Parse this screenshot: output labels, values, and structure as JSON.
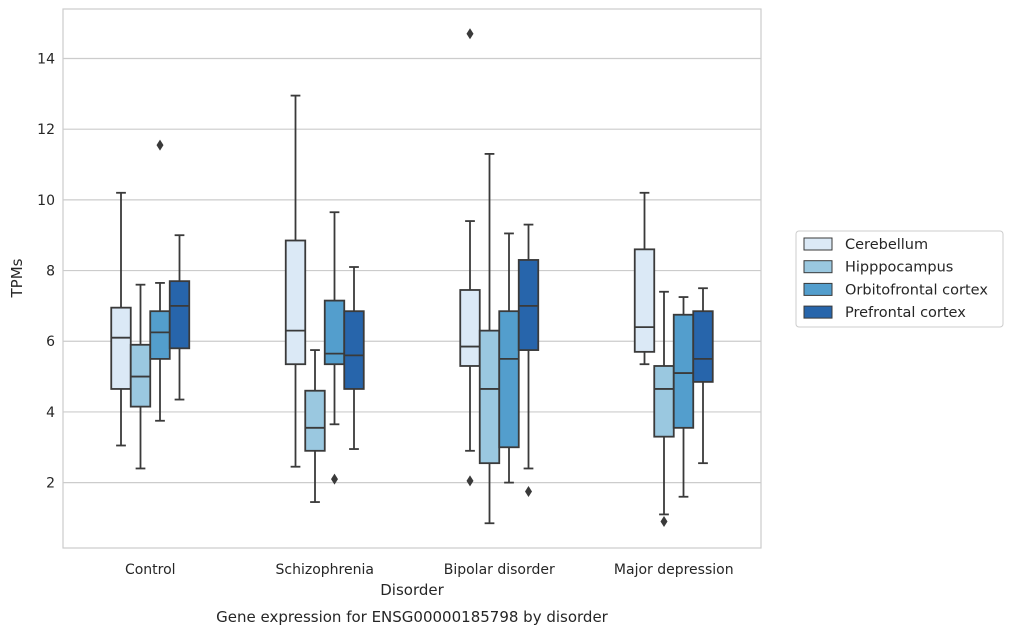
{
  "chart_data": {
    "type": "box",
    "xlabel": "Disorder",
    "ylabel": "TPMs",
    "caption": "Gene expression for ENSG00000185798 by disorder",
    "categories": [
      "Control",
      "Schizophrenia",
      "Bipolar disorder",
      "Major depression"
    ],
    "y_ticks": [
      "2",
      "4",
      "6",
      "8",
      "10",
      "12",
      "14"
    ],
    "ylim": [
      0.15,
      15.4
    ],
    "grid": "horizontal",
    "legend_position": "right",
    "colors": {
      "Cerebellum": "#dbe9f6",
      "Hipppocampus": "#9ac8e0",
      "Orbitofrontal cortex": "#539ecd",
      "Prefrontal cortex": "#2765ab",
      "edge": "#3a3a3a",
      "grid": "#cccccc",
      "frame": "#cccccc"
    },
    "series": [
      {
        "name": "Cerebellum",
        "boxes": [
          {
            "whislo": 3.05,
            "q1": 4.65,
            "med": 6.1,
            "q3": 6.95,
            "whishi": 10.2,
            "fliers": []
          },
          {
            "whislo": 2.45,
            "q1": 5.35,
            "med": 6.3,
            "q3": 8.85,
            "whishi": 12.95,
            "fliers": []
          },
          {
            "whislo": 2.9,
            "q1": 5.3,
            "med": 5.85,
            "q3": 7.45,
            "whishi": 9.4,
            "fliers": [
              2.05,
              14.7
            ]
          },
          {
            "whislo": 5.35,
            "q1": 5.7,
            "med": 6.4,
            "q3": 8.6,
            "whishi": 10.2,
            "fliers": []
          }
        ]
      },
      {
        "name": "Hipppocampus",
        "boxes": [
          {
            "whislo": 2.4,
            "q1": 4.15,
            "med": 5.0,
            "q3": 5.9,
            "whishi": 7.6,
            "fliers": []
          },
          {
            "whislo": 1.45,
            "q1": 2.9,
            "med": 3.55,
            "q3": 4.6,
            "whishi": 5.75,
            "fliers": []
          },
          {
            "whislo": 0.85,
            "q1": 2.55,
            "med": 4.65,
            "q3": 6.3,
            "whishi": 11.3,
            "fliers": []
          },
          {
            "whislo": 1.1,
            "q1": 3.3,
            "med": 4.65,
            "q3": 5.3,
            "whishi": 7.4,
            "fliers": [
              0.9
            ]
          }
        ]
      },
      {
        "name": "Orbitofrontal cortex",
        "boxes": [
          {
            "whislo": 3.75,
            "q1": 5.5,
            "med": 6.25,
            "q3": 6.85,
            "whishi": 7.65,
            "fliers": [
              11.55
            ]
          },
          {
            "whislo": 3.65,
            "q1": 5.35,
            "med": 5.65,
            "q3": 7.15,
            "whishi": 9.65,
            "fliers": [
              2.1
            ]
          },
          {
            "whislo": 2.0,
            "q1": 3.0,
            "med": 5.5,
            "q3": 6.85,
            "whishi": 9.05,
            "fliers": []
          },
          {
            "whislo": 1.6,
            "q1": 3.55,
            "med": 5.1,
            "q3": 6.75,
            "whishi": 7.25,
            "fliers": []
          }
        ]
      },
      {
        "name": "Prefrontal cortex",
        "boxes": [
          {
            "whislo": 4.35,
            "q1": 5.8,
            "med": 7.0,
            "q3": 7.7,
            "whishi": 9.0,
            "fliers": []
          },
          {
            "whislo": 2.95,
            "q1": 4.65,
            "med": 5.6,
            "q3": 6.85,
            "whishi": 8.1,
            "fliers": []
          },
          {
            "whislo": 2.4,
            "q1": 5.75,
            "med": 7.0,
            "q3": 8.3,
            "whishi": 9.3,
            "fliers": [
              1.75
            ]
          },
          {
            "whislo": 2.55,
            "q1": 4.85,
            "med": 5.5,
            "q3": 6.85,
            "whishi": 7.5,
            "fliers": []
          }
        ]
      }
    ]
  }
}
